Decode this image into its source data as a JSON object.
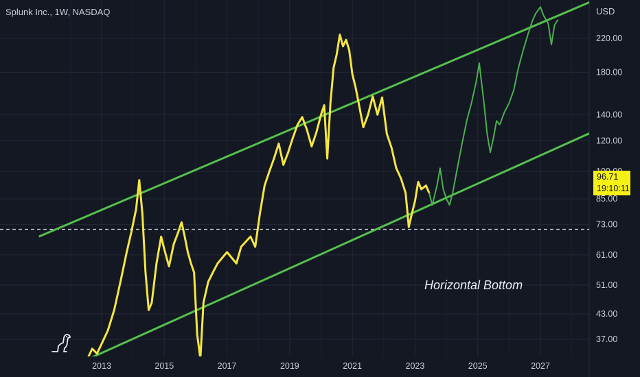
{
  "header": {
    "symbol_title": "Splunk Inc., 1W, NASDAQ",
    "currency": "USD"
  },
  "price_badge": {
    "price": "96.71",
    "countdown": "19:10:11"
  },
  "annotation": "Horizontal Bottom",
  "colors": {
    "background": "#141823",
    "grid": "#232837",
    "price_line_history": "#f5e642",
    "price_line_projection": "#4caf50",
    "channel_lines": "#55c04d",
    "support_line": "#ffffff",
    "badge": "#f5f114"
  },
  "logo_icon": "tradingview-dino-icon",
  "chart_data": {
    "type": "line",
    "scale": "log",
    "grid": true,
    "y_ticks": [
      {
        "label": "220.00",
        "value": 220
      },
      {
        "label": "180.00",
        "value": 180
      },
      {
        "label": "140.00",
        "value": 140
      },
      {
        "label": "120.00",
        "value": 120
      },
      {
        "label": "85.00",
        "value": 85
      },
      {
        "label": "73.00",
        "value": 73
      },
      {
        "label": "61.00",
        "value": 61
      },
      {
        "label": "51.00",
        "value": 51
      },
      {
        "label": "43.00",
        "value": 43
      },
      {
        "label": "37.00",
        "value": 37
      }
    ],
    "x_ticks": [
      "2013",
      "2015",
      "2017",
      "2019",
      "2021",
      "2023",
      "2025",
      "2027"
    ],
    "x_range": [
      2011.0,
      2029.0
    ],
    "y_range": [
      33,
      265
    ],
    "series": [
      {
        "kind": "history",
        "points": [
          [
            2012.55,
            33
          ],
          [
            2012.7,
            35
          ],
          [
            2012.85,
            34
          ],
          [
            2013.0,
            36
          ],
          [
            2013.2,
            39
          ],
          [
            2013.4,
            44
          ],
          [
            2013.6,
            52
          ],
          [
            2013.8,
            62
          ],
          [
            2013.95,
            70
          ],
          [
            2014.1,
            80
          ],
          [
            2014.2,
            95
          ],
          [
            2014.3,
            78
          ],
          [
            2014.4,
            55
          ],
          [
            2014.5,
            44
          ],
          [
            2014.6,
            46
          ],
          [
            2014.75,
            58
          ],
          [
            2014.9,
            68
          ],
          [
            2015.0,
            63
          ],
          [
            2015.15,
            57
          ],
          [
            2015.3,
            65
          ],
          [
            2015.45,
            70
          ],
          [
            2015.55,
            74
          ],
          [
            2015.65,
            68
          ],
          [
            2015.75,
            62
          ],
          [
            2015.85,
            58
          ],
          [
            2015.95,
            55
          ],
          [
            2016.05,
            38
          ],
          [
            2016.15,
            33
          ],
          [
            2016.25,
            46
          ],
          [
            2016.4,
            52
          ],
          [
            2016.55,
            55
          ],
          [
            2016.7,
            58
          ],
          [
            2016.85,
            60
          ],
          [
            2017.0,
            62
          ],
          [
            2017.15,
            60
          ],
          [
            2017.3,
            58
          ],
          [
            2017.45,
            64
          ],
          [
            2017.6,
            66
          ],
          [
            2017.75,
            68
          ],
          [
            2017.9,
            64
          ],
          [
            2018.05,
            78
          ],
          [
            2018.2,
            92
          ],
          [
            2018.35,
            100
          ],
          [
            2018.5,
            108
          ],
          [
            2018.65,
            118
          ],
          [
            2018.8,
            104
          ],
          [
            2018.95,
            112
          ],
          [
            2019.1,
            122
          ],
          [
            2019.25,
            132
          ],
          [
            2019.4,
            138
          ],
          [
            2019.55,
            128
          ],
          [
            2019.7,
            116
          ],
          [
            2019.85,
            126
          ],
          [
            2020.0,
            140
          ],
          [
            2020.1,
            148
          ],
          [
            2020.2,
            108
          ],
          [
            2020.3,
            150
          ],
          [
            2020.4,
            185
          ],
          [
            2020.5,
            200
          ],
          [
            2020.6,
            225
          ],
          [
            2020.7,
            210
          ],
          [
            2020.8,
            218
          ],
          [
            2020.9,
            205
          ],
          [
            2021.0,
            178
          ],
          [
            2021.1,
            165
          ],
          [
            2021.2,
            150
          ],
          [
            2021.35,
            130
          ],
          [
            2021.5,
            140
          ],
          [
            2021.65,
            156
          ],
          [
            2021.8,
            140
          ],
          [
            2021.95,
            155
          ],
          [
            2022.1,
            125
          ],
          [
            2022.25,
            115
          ],
          [
            2022.4,
            102
          ],
          [
            2022.55,
            96
          ],
          [
            2022.7,
            88
          ],
          [
            2022.8,
            72
          ],
          [
            2022.9,
            78
          ],
          [
            2023.0,
            84
          ],
          [
            2023.1,
            94
          ],
          [
            2023.2,
            90
          ],
          [
            2023.35,
            92
          ],
          [
            2023.45,
            88
          ]
        ]
      },
      {
        "kind": "projection",
        "points": [
          [
            2023.45,
            88
          ],
          [
            2023.55,
            82
          ],
          [
            2023.7,
            92
          ],
          [
            2023.8,
            102
          ],
          [
            2023.9,
            90
          ],
          [
            2024.0,
            85
          ],
          [
            2024.1,
            82
          ],
          [
            2024.2,
            88
          ],
          [
            2024.35,
            102
          ],
          [
            2024.5,
            118
          ],
          [
            2024.65,
            135
          ],
          [
            2024.8,
            150
          ],
          [
            2024.95,
            170
          ],
          [
            2025.05,
            190
          ],
          [
            2025.1,
            175
          ],
          [
            2025.2,
            150
          ],
          [
            2025.3,
            125
          ],
          [
            2025.4,
            112
          ],
          [
            2025.5,
            122
          ],
          [
            2025.6,
            135
          ],
          [
            2025.7,
            132
          ],
          [
            2025.85,
            142
          ],
          [
            2026.0,
            150
          ],
          [
            2026.15,
            162
          ],
          [
            2026.3,
            185
          ],
          [
            2026.45,
            205
          ],
          [
            2026.6,
            225
          ],
          [
            2026.75,
            245
          ],
          [
            2026.85,
            255
          ],
          [
            2027.0,
            265
          ],
          [
            2027.1,
            252
          ],
          [
            2027.25,
            240
          ],
          [
            2027.35,
            212
          ],
          [
            2027.45,
            238
          ],
          [
            2027.55,
            245
          ]
        ]
      }
    ],
    "channel_lines": [
      {
        "name": "upper",
        "from": [
          2011.0,
          68
        ],
        "to": [
          2029.0,
          282
        ]
      },
      {
        "name": "lower",
        "from": [
          2012.6,
          33
        ],
        "to": [
          2029.0,
          130
        ]
      }
    ],
    "support_level": 71
  }
}
